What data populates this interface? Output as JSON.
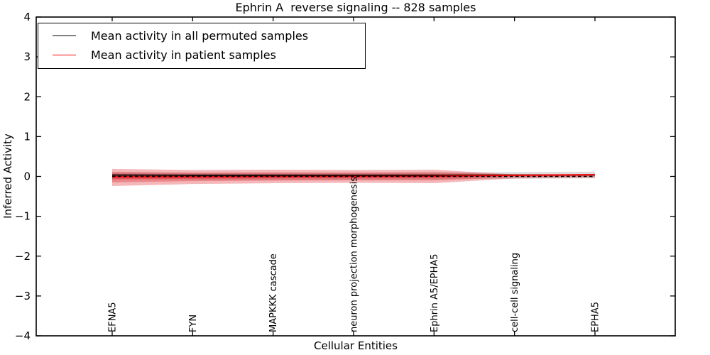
{
  "chart_data": {
    "type": "line",
    "title": "Ephrin A  reverse signaling -- 828 samples",
    "xlabel": "Cellular Entities",
    "ylabel": "Inferred Activity",
    "ylim": [
      -4,
      4
    ],
    "yticks": [
      4,
      3,
      2,
      1,
      0,
      -1,
      -2,
      -3,
      -4
    ],
    "ytick_labels": [
      "4",
      "3",
      "2",
      "1",
      "0",
      "−1",
      "−2",
      "−3",
      "−4"
    ],
    "grid": false,
    "legend_position": "upper left",
    "categories": [
      "EFNA5",
      "FYN",
      "MAPKKK cascade",
      "neuron projection morphogenesis",
      "Ephrin A5/EPHA5",
      "cell-cell signaling",
      "EPHA5"
    ],
    "zero_line": {
      "y": 0,
      "style": "dashed",
      "color": "#000000"
    },
    "series": [
      {
        "name": "Mean activity in all permuted samples",
        "color": "#000000",
        "values": [
          0.035,
          0.03,
          0.03,
          0.03,
          0.03,
          0.035,
          0.04
        ],
        "band_upper": [
          0.11,
          0.09,
          0.09,
          0.09,
          0.1,
          0.11,
          0.12
        ],
        "band_lower": [
          -0.07,
          -0.08,
          -0.08,
          -0.08,
          -0.07,
          -0.06,
          -0.05
        ],
        "band_color": "rgba(120,120,120,0.25)"
      },
      {
        "name": "Mean activity in patient samples",
        "color": "#ff0000",
        "values": [
          -0.01,
          -0.01,
          -0.005,
          0.0,
          0.005,
          0.03,
          0.045
        ],
        "band_upper": [
          0.19,
          0.16,
          0.17,
          0.16,
          0.17,
          0.05,
          0.05
        ],
        "band_lower": [
          -0.24,
          -0.19,
          -0.17,
          -0.16,
          -0.17,
          -0.05,
          -0.03
        ],
        "band_color": "rgba(220,20,25,0.30)"
      }
    ]
  },
  "legend": {
    "items": [
      {
        "label": "Mean activity in all permuted samples",
        "color": "#000000"
      },
      {
        "label": "Mean activity in patient samples",
        "color": "#ff0000"
      }
    ]
  }
}
